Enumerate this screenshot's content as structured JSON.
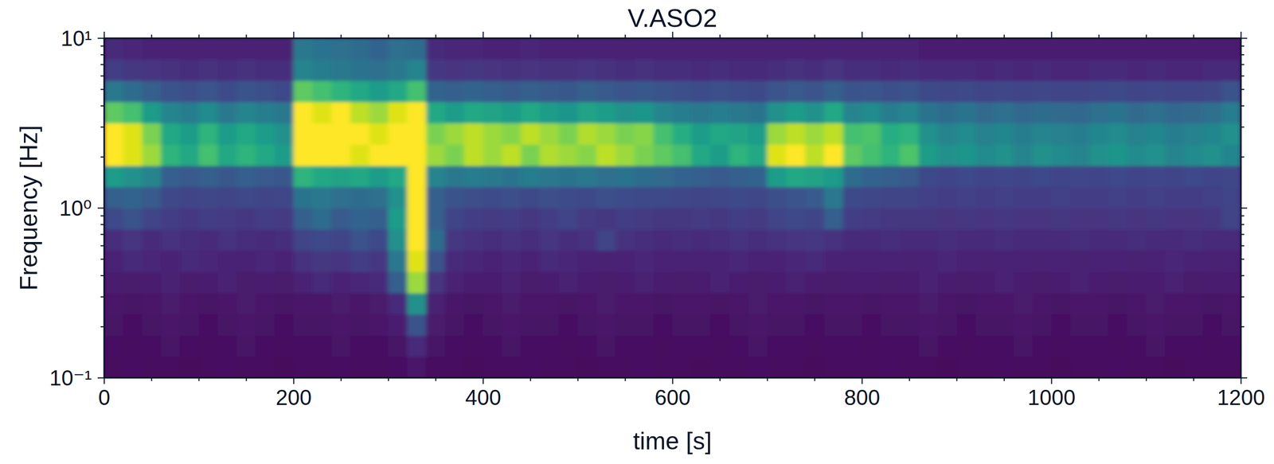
{
  "chart_data": {
    "type": "heatmap",
    "title": "V.ASO2",
    "x_label": "time [s]",
    "y_label": "Frequency [Hz]",
    "xlim": [
      0,
      1200
    ],
    "xticks": [
      0,
      200,
      400,
      600,
      800,
      1000,
      1200
    ],
    "xminor_ticks": [
      50,
      100,
      150,
      250,
      300,
      350,
      450,
      500,
      550,
      650,
      700,
      750,
      850,
      900,
      950,
      1050,
      1100,
      1150
    ],
    "ylim": [
      0.1,
      10
    ],
    "log": "y",
    "yticks": [
      {
        "value": 0.1,
        "label": "10⁻¹"
      },
      {
        "value": 1,
        "label": "10⁰"
      },
      {
        "value": 10,
        "label": "10¹"
      }
    ],
    "yminor_ticks": [
      0.2,
      0.3,
      0.4,
      0.5,
      0.6,
      0.7,
      0.8,
      0.9,
      2,
      3,
      4,
      5,
      6,
      7,
      8,
      9
    ],
    "time_bins": [
      0,
      20,
      40,
      60,
      80,
      100,
      120,
      140,
      160,
      180,
      200,
      220,
      240,
      260,
      280,
      300,
      320,
      340,
      360,
      380,
      400,
      420,
      440,
      460,
      480,
      500,
      520,
      540,
      560,
      580,
      600,
      620,
      640,
      660,
      680,
      700,
      720,
      740,
      760,
      780,
      800,
      820,
      840,
      860,
      880,
      900,
      920,
      940,
      960,
      980,
      1000,
      1020,
      1040,
      1060,
      1080,
      1100,
      1120,
      1140,
      1160,
      1180,
      1200
    ],
    "frequency_bins": [
      0.1,
      0.1334,
      0.1778,
      0.2371,
      0.3162,
      0.4217,
      0.5623,
      0.7499,
      1,
      1.3335,
      1.7783,
      2.3714,
      3.1623,
      4.217,
      5.6234,
      7.4989,
      10
    ],
    "color_range": [
      0,
      1
    ],
    "z": [
      [
        0.03,
        0.04,
        0.03,
        0.03,
        0.02,
        0.03,
        0.04,
        0.03,
        0.03,
        0.02,
        0.03,
        0.03,
        0.04,
        0.03,
        0.03,
        0.04,
        0.06,
        0.03,
        0.03,
        0.02,
        0.03,
        0.03,
        0.04,
        0.03,
        0.03,
        0.02,
        0.03,
        0.03,
        0.04,
        0.03,
        0.03,
        0.02,
        0.03,
        0.03,
        0.04,
        0.03,
        0.03,
        0.02,
        0.03,
        0.03,
        0.03,
        0.04,
        0.03,
        0.03,
        0.02,
        0.03,
        0.03,
        0.04,
        0.03,
        0.03,
        0.02,
        0.03,
        0.03,
        0.04,
        0.03,
        0.03,
        0.02,
        0.03,
        0.03,
        0.03
      ],
      [
        0.04,
        0.03,
        0.04,
        0.05,
        0.04,
        0.03,
        0.04,
        0.05,
        0.04,
        0.03,
        0.04,
        0.04,
        0.05,
        0.04,
        0.04,
        0.05,
        0.12,
        0.05,
        0.04,
        0.03,
        0.04,
        0.05,
        0.04,
        0.04,
        0.03,
        0.04,
        0.05,
        0.04,
        0.04,
        0.03,
        0.04,
        0.04,
        0.03,
        0.04,
        0.05,
        0.04,
        0.04,
        0.03,
        0.04,
        0.04,
        0.03,
        0.04,
        0.04,
        0.05,
        0.04,
        0.03,
        0.04,
        0.04,
        0.05,
        0.04,
        0.03,
        0.04,
        0.04,
        0.03,
        0.04,
        0.05,
        0.04,
        0.04,
        0.03,
        0.04
      ],
      [
        0.05,
        0.04,
        0.05,
        0.06,
        0.05,
        0.04,
        0.05,
        0.06,
        0.05,
        0.04,
        0.05,
        0.05,
        0.06,
        0.05,
        0.06,
        0.08,
        0.25,
        0.07,
        0.05,
        0.04,
        0.05,
        0.06,
        0.05,
        0.05,
        0.04,
        0.05,
        0.06,
        0.05,
        0.05,
        0.04,
        0.05,
        0.05,
        0.04,
        0.05,
        0.06,
        0.05,
        0.05,
        0.04,
        0.05,
        0.05,
        0.04,
        0.05,
        0.05,
        0.06,
        0.05,
        0.04,
        0.05,
        0.05,
        0.06,
        0.05,
        0.04,
        0.05,
        0.05,
        0.04,
        0.05,
        0.06,
        0.05,
        0.05,
        0.04,
        0.05
      ],
      [
        0.06,
        0.05,
        0.06,
        0.07,
        0.06,
        0.05,
        0.06,
        0.07,
        0.06,
        0.05,
        0.06,
        0.06,
        0.07,
        0.06,
        0.07,
        0.12,
        0.5,
        0.09,
        0.06,
        0.05,
        0.06,
        0.07,
        0.06,
        0.06,
        0.05,
        0.06,
        0.07,
        0.06,
        0.06,
        0.05,
        0.06,
        0.06,
        0.05,
        0.06,
        0.07,
        0.06,
        0.06,
        0.05,
        0.06,
        0.06,
        0.05,
        0.06,
        0.06,
        0.07,
        0.06,
        0.05,
        0.06,
        0.06,
        0.07,
        0.06,
        0.05,
        0.06,
        0.06,
        0.05,
        0.06,
        0.07,
        0.06,
        0.06,
        0.05,
        0.06
      ],
      [
        0.08,
        0.07,
        0.08,
        0.09,
        0.07,
        0.08,
        0.09,
        0.07,
        0.08,
        0.07,
        0.1,
        0.12,
        0.1,
        0.11,
        0.12,
        0.3,
        0.85,
        0.15,
        0.09,
        0.08,
        0.08,
        0.09,
        0.07,
        0.08,
        0.09,
        0.08,
        0.07,
        0.08,
        0.09,
        0.08,
        0.07,
        0.08,
        0.09,
        0.08,
        0.07,
        0.08,
        0.09,
        0.08,
        0.07,
        0.08,
        0.08,
        0.07,
        0.08,
        0.09,
        0.08,
        0.07,
        0.08,
        0.09,
        0.08,
        0.07,
        0.08,
        0.09,
        0.08,
        0.07,
        0.08,
        0.08,
        0.09,
        0.07,
        0.08,
        0.08
      ],
      [
        0.1,
        0.12,
        0.11,
        0.1,
        0.12,
        0.11,
        0.1,
        0.09,
        0.11,
        0.1,
        0.14,
        0.16,
        0.15,
        0.18,
        0.16,
        0.4,
        0.95,
        0.25,
        0.12,
        0.11,
        0.1,
        0.11,
        0.1,
        0.12,
        0.11,
        0.1,
        0.09,
        0.1,
        0.11,
        0.1,
        0.1,
        0.09,
        0.1,
        0.11,
        0.1,
        0.1,
        0.11,
        0.12,
        0.1,
        0.09,
        0.1,
        0.1,
        0.09,
        0.1,
        0.11,
        0.1,
        0.09,
        0.1,
        0.1,
        0.09,
        0.1,
        0.09,
        0.1,
        0.1,
        0.09,
        0.1,
        0.11,
        0.1,
        0.09,
        0.1
      ],
      [
        0.13,
        0.15,
        0.12,
        0.14,
        0.13,
        0.12,
        0.14,
        0.13,
        0.12,
        0.13,
        0.2,
        0.22,
        0.2,
        0.25,
        0.22,
        0.5,
        1.0,
        0.35,
        0.16,
        0.14,
        0.13,
        0.14,
        0.13,
        0.15,
        0.13,
        0.14,
        0.2,
        0.14,
        0.13,
        0.12,
        0.13,
        0.12,
        0.13,
        0.14,
        0.13,
        0.14,
        0.15,
        0.16,
        0.14,
        0.12,
        0.12,
        0.13,
        0.12,
        0.12,
        0.13,
        0.12,
        0.12,
        0.13,
        0.12,
        0.12,
        0.12,
        0.13,
        0.12,
        0.12,
        0.13,
        0.12,
        0.12,
        0.13,
        0.12,
        0.12
      ],
      [
        0.22,
        0.25,
        0.2,
        0.18,
        0.16,
        0.18,
        0.17,
        0.16,
        0.18,
        0.17,
        0.3,
        0.35,
        0.28,
        0.32,
        0.3,
        0.55,
        1.0,
        0.3,
        0.2,
        0.18,
        0.17,
        0.18,
        0.16,
        0.18,
        0.2,
        0.17,
        0.16,
        0.18,
        0.17,
        0.16,
        0.16,
        0.17,
        0.16,
        0.18,
        0.17,
        0.2,
        0.22,
        0.2,
        0.3,
        0.18,
        0.17,
        0.16,
        0.16,
        0.16,
        0.15,
        0.16,
        0.15,
        0.16,
        0.15,
        0.15,
        0.16,
        0.15,
        0.15,
        0.16,
        0.15,
        0.16,
        0.15,
        0.15,
        0.16,
        0.2
      ],
      [
        0.3,
        0.32,
        0.28,
        0.22,
        0.2,
        0.21,
        0.2,
        0.22,
        0.2,
        0.21,
        0.38,
        0.4,
        0.36,
        0.35,
        0.36,
        0.5,
        1.0,
        0.3,
        0.25,
        0.24,
        0.23,
        0.24,
        0.22,
        0.24,
        0.23,
        0.22,
        0.24,
        0.23,
        0.22,
        0.22,
        0.21,
        0.2,
        0.21,
        0.22,
        0.21,
        0.24,
        0.26,
        0.28,
        0.4,
        0.22,
        0.21,
        0.2,
        0.2,
        0.19,
        0.18,
        0.19,
        0.18,
        0.19,
        0.18,
        0.18,
        0.19,
        0.18,
        0.18,
        0.19,
        0.18,
        0.19,
        0.18,
        0.18,
        0.19,
        0.2
      ],
      [
        0.55,
        0.5,
        0.45,
        0.3,
        0.28,
        0.3,
        0.27,
        0.3,
        0.28,
        0.27,
        0.65,
        0.6,
        0.58,
        0.6,
        0.55,
        0.6,
        1.0,
        0.45,
        0.4,
        0.42,
        0.4,
        0.38,
        0.42,
        0.4,
        0.38,
        0.4,
        0.36,
        0.38,
        0.35,
        0.34,
        0.32,
        0.3,
        0.28,
        0.3,
        0.32,
        0.55,
        0.6,
        0.58,
        0.55,
        0.35,
        0.32,
        0.3,
        0.28,
        0.22,
        0.2,
        0.22,
        0.2,
        0.21,
        0.2,
        0.22,
        0.2,
        0.21,
        0.2,
        0.22,
        0.2,
        0.21,
        0.2,
        0.22,
        0.2,
        0.21
      ],
      [
        1.0,
        0.95,
        0.85,
        0.65,
        0.6,
        0.7,
        0.6,
        0.65,
        0.6,
        0.55,
        1.0,
        1.0,
        1.0,
        0.95,
        1.0,
        1.0,
        1.0,
        0.85,
        0.8,
        0.9,
        0.85,
        0.9,
        0.8,
        0.88,
        0.85,
        0.82,
        0.9,
        0.85,
        0.8,
        0.75,
        0.7,
        0.6,
        0.55,
        0.65,
        0.6,
        0.95,
        1.0,
        0.9,
        1.0,
        0.75,
        0.7,
        0.65,
        0.72,
        0.55,
        0.5,
        0.52,
        0.48,
        0.5,
        0.45,
        0.5,
        0.48,
        0.45,
        0.5,
        0.52,
        0.48,
        0.5,
        0.45,
        0.48,
        0.5,
        0.46
      ],
      [
        1.0,
        0.95,
        0.8,
        0.6,
        0.55,
        0.65,
        0.55,
        0.6,
        0.55,
        0.5,
        1.0,
        1.0,
        1.0,
        1.0,
        0.95,
        1.0,
        1.0,
        0.8,
        0.85,
        0.9,
        0.85,
        0.82,
        0.9,
        0.85,
        0.8,
        0.88,
        0.85,
        0.8,
        0.82,
        0.7,
        0.62,
        0.55,
        0.6,
        0.58,
        0.55,
        0.85,
        0.9,
        0.85,
        0.9,
        0.7,
        0.72,
        0.62,
        0.65,
        0.5,
        0.45,
        0.48,
        0.44,
        0.46,
        0.42,
        0.45,
        0.44,
        0.42,
        0.46,
        0.48,
        0.44,
        0.46,
        0.42,
        0.44,
        0.46,
        0.5
      ],
      [
        0.75,
        0.7,
        0.55,
        0.45,
        0.42,
        0.48,
        0.4,
        0.45,
        0.42,
        0.4,
        1.0,
        0.95,
        1.0,
        0.9,
        0.85,
        0.95,
        1.0,
        0.6,
        0.55,
        0.6,
        0.58,
        0.55,
        0.6,
        0.55,
        0.52,
        0.58,
        0.55,
        0.5,
        0.52,
        0.45,
        0.42,
        0.4,
        0.42,
        0.4,
        0.38,
        0.5,
        0.55,
        0.5,
        0.6,
        0.45,
        0.48,
        0.42,
        0.45,
        0.38,
        0.35,
        0.38,
        0.34,
        0.36,
        0.33,
        0.35,
        0.34,
        0.33,
        0.36,
        0.38,
        0.34,
        0.36,
        0.33,
        0.34,
        0.36,
        0.42
      ],
      [
        0.4,
        0.35,
        0.3,
        0.25,
        0.24,
        0.26,
        0.23,
        0.25,
        0.24,
        0.22,
        0.75,
        0.7,
        0.65,
        0.6,
        0.55,
        0.6,
        0.7,
        0.32,
        0.3,
        0.32,
        0.3,
        0.28,
        0.3,
        0.28,
        0.27,
        0.3,
        0.28,
        0.26,
        0.27,
        0.25,
        0.24,
        0.23,
        0.24,
        0.23,
        0.22,
        0.26,
        0.28,
        0.26,
        0.3,
        0.25,
        0.26,
        0.24,
        0.25,
        0.22,
        0.21,
        0.22,
        0.2,
        0.21,
        0.2,
        0.21,
        0.2,
        0.2,
        0.21,
        0.22,
        0.2,
        0.21,
        0.2,
        0.2,
        0.21,
        0.25
      ],
      [
        0.18,
        0.16,
        0.15,
        0.14,
        0.13,
        0.14,
        0.13,
        0.14,
        0.13,
        0.13,
        0.45,
        0.42,
        0.4,
        0.38,
        0.36,
        0.4,
        0.45,
        0.16,
        0.15,
        0.16,
        0.15,
        0.14,
        0.15,
        0.14,
        0.14,
        0.15,
        0.14,
        0.13,
        0.14,
        0.13,
        0.13,
        0.12,
        0.13,
        0.12,
        0.12,
        0.13,
        0.14,
        0.13,
        0.15,
        0.13,
        0.13,
        0.12,
        0.13,
        0.12,
        0.12,
        0.12,
        0.11,
        0.12,
        0.11,
        0.12,
        0.11,
        0.11,
        0.12,
        0.12,
        0.11,
        0.12,
        0.11,
        0.11,
        0.12,
        0.12
      ],
      [
        0.12,
        0.11,
        0.1,
        0.1,
        0.09,
        0.1,
        0.09,
        0.1,
        0.09,
        0.09,
        0.4,
        0.38,
        0.36,
        0.35,
        0.32,
        0.36,
        0.35,
        0.12,
        0.11,
        0.11,
        0.1,
        0.1,
        0.11,
        0.1,
        0.1,
        0.1,
        0.1,
        0.09,
        0.1,
        0.09,
        0.09,
        0.09,
        0.09,
        0.09,
        0.09,
        0.09,
        0.1,
        0.09,
        0.1,
        0.09,
        0.09,
        0.09,
        0.09,
        0.08,
        0.08,
        0.08,
        0.08,
        0.08,
        0.08,
        0.08,
        0.08,
        0.08,
        0.08,
        0.08,
        0.08,
        0.08,
        0.08,
        0.08,
        0.08,
        0.08
      ]
    ]
  }
}
